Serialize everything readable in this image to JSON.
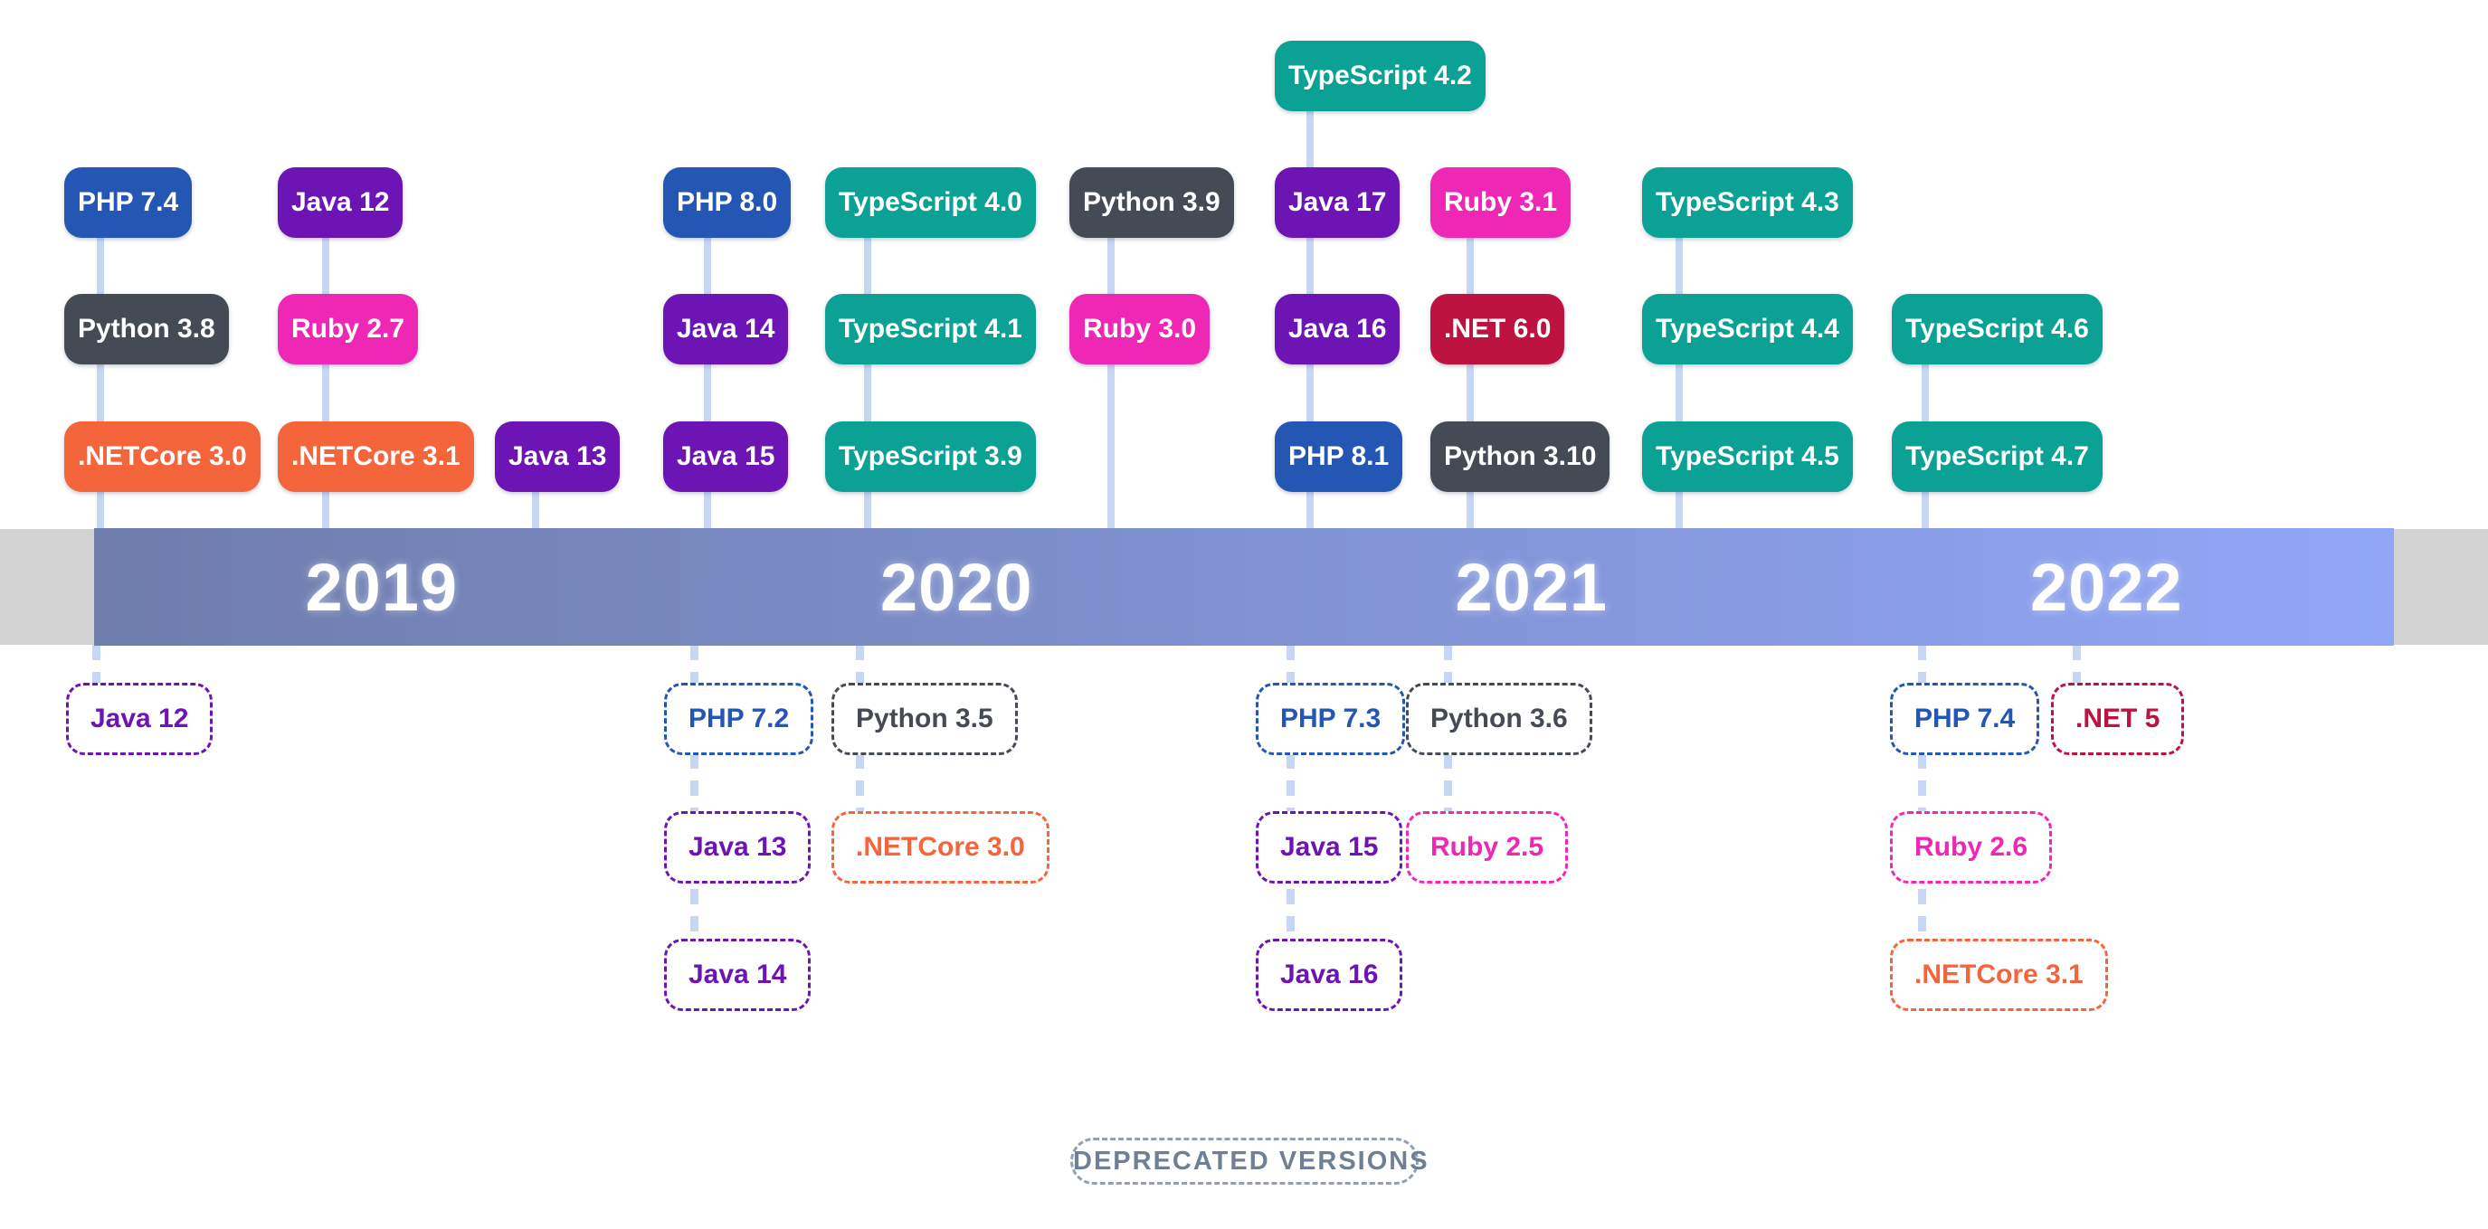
{
  "timeline": {
    "years": [
      "2019",
      "2020",
      "2021",
      "2022"
    ],
    "bar_gradient_start": "#6e7dab",
    "bar_gradient_end": "#91a6f7",
    "track_color": "#d3d3d3",
    "connector_color": "#c7d6f3"
  },
  "palette": {
    "php": "#2456b4",
    "java": "#6d14b5",
    "python": "#454b55",
    "netcore": "#f4653c",
    "ruby": "#ee28b5",
    "typescript": "#0ba295",
    "dotnet": "#bd1340"
  },
  "released": [
    {
      "label": "TypeScript 4.2",
      "lang": "typescript",
      "col": "c7",
      "row": 0
    },
    {
      "label": "PHP 7.4",
      "lang": "php",
      "col": "c1",
      "row": 1
    },
    {
      "label": "Java 12",
      "lang": "java",
      "col": "c2",
      "row": 1
    },
    {
      "label": "PHP 8.0",
      "lang": "php",
      "col": "c4",
      "row": 1
    },
    {
      "label": "TypeScript 4.0",
      "lang": "typescript",
      "col": "c5",
      "row": 1
    },
    {
      "label": "Python 3.9",
      "lang": "python",
      "col": "c6",
      "row": 1
    },
    {
      "label": "Java 17",
      "lang": "java",
      "col": "c7",
      "row": 1
    },
    {
      "label": "Ruby 3.1",
      "lang": "ruby",
      "col": "c8",
      "row": 1
    },
    {
      "label": "TypeScript 4.3",
      "lang": "typescript",
      "col": "c9",
      "row": 1
    },
    {
      "label": "Python 3.8",
      "lang": "python",
      "col": "c1",
      "row": 2
    },
    {
      "label": "Ruby 2.7",
      "lang": "ruby",
      "col": "c2",
      "row": 2
    },
    {
      "label": "Java 14",
      "lang": "java",
      "col": "c4",
      "row": 2
    },
    {
      "label": "TypeScript 4.1",
      "lang": "typescript",
      "col": "c5",
      "row": 2
    },
    {
      "label": "Ruby 3.0",
      "lang": "ruby",
      "col": "c6",
      "row": 2
    },
    {
      "label": "Java 16",
      "lang": "java",
      "col": "c7",
      "row": 2
    },
    {
      "label": ".NET 6.0",
      "lang": "dotnet",
      "col": "c8",
      "row": 2
    },
    {
      "label": "TypeScript 4.4",
      "lang": "typescript",
      "col": "c9",
      "row": 2
    },
    {
      "label": "TypeScript 4.6",
      "lang": "typescript",
      "col": "c10",
      "row": 2
    },
    {
      "label": ".NETCore 3.0",
      "lang": "netcore",
      "col": "c1",
      "row": 3
    },
    {
      "label": ".NETCore 3.1",
      "lang": "netcore",
      "col": "c2",
      "row": 3
    },
    {
      "label": "Java 13",
      "lang": "java",
      "col": "c3",
      "row": 3
    },
    {
      "label": "Java 15",
      "lang": "java",
      "col": "c4",
      "row": 3
    },
    {
      "label": "TypeScript 3.9",
      "lang": "typescript",
      "col": "c5",
      "row": 3
    },
    {
      "label": "PHP 8.1",
      "lang": "php",
      "col": "c7",
      "row": 3
    },
    {
      "label": "Python 3.10",
      "lang": "python",
      "col": "c8",
      "row": 3
    },
    {
      "label": "TypeScript 4.5",
      "lang": "typescript",
      "col": "c9",
      "row": 3
    },
    {
      "label": "TypeScript 4.7",
      "lang": "typescript",
      "col": "c10",
      "row": 3
    }
  ],
  "deprecated": [
    {
      "label": "Java 12",
      "lang": "java",
      "col": "d1",
      "row": 1
    },
    {
      "label": "PHP 7.2",
      "lang": "php",
      "col": "d2",
      "row": 1
    },
    {
      "label": "Python 3.5",
      "lang": "python",
      "col": "d3",
      "row": 1
    },
    {
      "label": "PHP 7.3",
      "lang": "php",
      "col": "d4",
      "row": 1
    },
    {
      "label": "Python 3.6",
      "lang": "python",
      "col": "d5",
      "row": 1
    },
    {
      "label": "PHP 7.4",
      "lang": "php",
      "col": "d6",
      "row": 1
    },
    {
      "label": ".NET 5",
      "lang": "dotnet",
      "col": "d7",
      "row": 1
    },
    {
      "label": "Java 13",
      "lang": "java",
      "col": "d2",
      "row": 2
    },
    {
      "label": ".NETCore 3.0",
      "lang": "netcore",
      "col": "d3",
      "row": 2
    },
    {
      "label": "Java 15",
      "lang": "java",
      "col": "d4",
      "row": 2
    },
    {
      "label": "Ruby 2.5",
      "lang": "ruby",
      "col": "d5",
      "row": 2
    },
    {
      "label": "Ruby 2.6",
      "lang": "ruby",
      "col": "d6",
      "row": 2
    },
    {
      "label": "Java 14",
      "lang": "java",
      "col": "d2",
      "row": 3
    },
    {
      "label": "Java 16",
      "lang": "java",
      "col": "d4",
      "row": 3
    },
    {
      "label": ".NETCore 3.1",
      "lang": "netcore",
      "col": "d6",
      "row": 3
    }
  ],
  "footer": {
    "deprecated_label": "DEPRECATED VERSIONS"
  }
}
